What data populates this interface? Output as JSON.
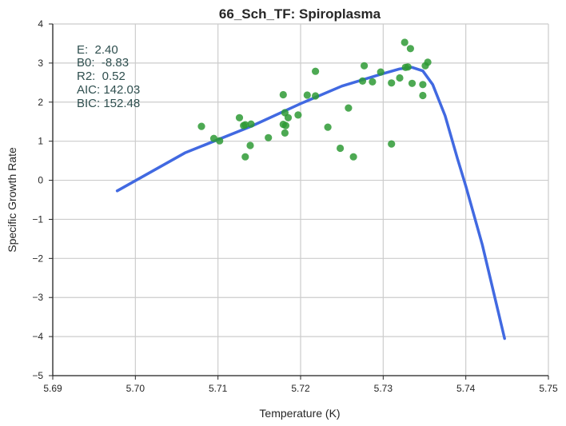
{
  "chart_data": {
    "type": "scatter",
    "title": "66_Sch_TF: Spiroplasma",
    "xlabel": "Temperature (K)",
    "ylabel": "Specific Growth Rate",
    "xlim": [
      5.69,
      5.75
    ],
    "ylim": [
      -5,
      4
    ],
    "xticks": [
      5.69,
      5.7,
      5.71,
      5.72,
      5.73,
      5.74,
      5.75
    ],
    "xtick_labels": [
      "5.69",
      "5.70",
      "5.71",
      "5.72",
      "5.73",
      "5.74",
      "5.75"
    ],
    "yticks": [
      -5,
      -4,
      -3,
      -2,
      -1,
      0,
      1,
      2,
      3,
      4
    ],
    "ytick_labels": [
      "−5",
      "−4",
      "−3",
      "−2",
      "−1",
      "0",
      "1",
      "2",
      "3",
      "4"
    ],
    "grid": true,
    "annotations": [
      "E:  2.40",
      "B0:  -8.83",
      "R2:  0.52",
      "AIC: 142.03",
      "BIC: 152.48"
    ],
    "colors": {
      "points": "#2e9a35",
      "fit": "#4169e1",
      "text": "#2f4f4f"
    },
    "series": [
      {
        "kind": "points",
        "points": [
          [
            5.708,
            1.38
          ],
          [
            5.7095,
            1.07
          ],
          [
            5.7102,
            1.01
          ],
          [
            5.7126,
            1.6
          ],
          [
            5.7131,
            1.4
          ],
          [
            5.7133,
            1.42
          ],
          [
            5.714,
            1.44
          ],
          [
            5.7133,
            0.6
          ],
          [
            5.7139,
            0.89
          ],
          [
            5.7161,
            1.09
          ],
          [
            5.7179,
            2.19
          ],
          [
            5.7181,
            1.73
          ],
          [
            5.7179,
            1.43
          ],
          [
            5.7182,
            1.4
          ],
          [
            5.7181,
            1.21
          ],
          [
            5.7185,
            1.6
          ],
          [
            5.7197,
            1.67
          ],
          [
            5.7208,
            2.18
          ],
          [
            5.7218,
            2.16
          ],
          [
            5.7218,
            2.79
          ],
          [
            5.7233,
            1.36
          ],
          [
            5.7248,
            0.82
          ],
          [
            5.7258,
            1.85
          ],
          [
            5.7264,
            0.6
          ],
          [
            5.7275,
            2.54
          ],
          [
            5.7277,
            2.93
          ],
          [
            5.7287,
            2.52
          ],
          [
            5.7297,
            2.77
          ],
          [
            5.731,
            2.49
          ],
          [
            5.731,
            0.93
          ],
          [
            5.732,
            2.62
          ],
          [
            5.7326,
            3.53
          ],
          [
            5.7327,
            2.89
          ],
          [
            5.733,
            2.9
          ],
          [
            5.7333,
            3.37
          ],
          [
            5.7335,
            2.48
          ],
          [
            5.7348,
            2.17
          ],
          [
            5.7348,
            2.45
          ],
          [
            5.7351,
            2.93
          ],
          [
            5.7354,
            3.02
          ]
        ]
      },
      {
        "kind": "fit",
        "points": [
          [
            5.6978,
            -0.27
          ],
          [
            5.706,
            0.7
          ],
          [
            5.714,
            1.38
          ],
          [
            5.72,
            1.96
          ],
          [
            5.725,
            2.41
          ],
          [
            5.73,
            2.73
          ],
          [
            5.732,
            2.85
          ],
          [
            5.7335,
            2.89
          ],
          [
            5.7348,
            2.8
          ],
          [
            5.736,
            2.45
          ],
          [
            5.7375,
            1.65
          ],
          [
            5.739,
            0.55
          ],
          [
            5.74,
            -0.15
          ],
          [
            5.742,
            -1.65
          ],
          [
            5.7447,
            -4.05
          ]
        ]
      }
    ]
  }
}
